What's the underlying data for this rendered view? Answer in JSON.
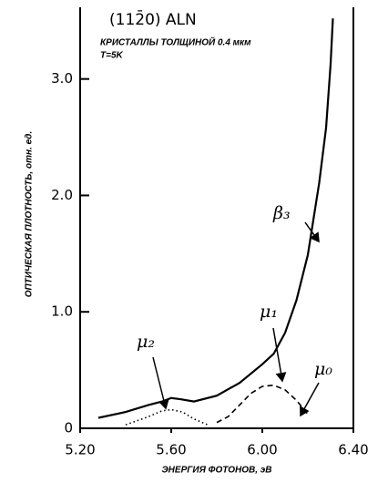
{
  "chart_data": {
    "type": "line",
    "title": "(112̄0) ALN",
    "subtitle": [
      "КРИСТАЛЛЫ ТОЛЩИНОЙ 0.4 мкм",
      "T=5K"
    ],
    "xlabel": "ЭНЕРГИЯ ФОТОНОВ, эВ",
    "ylabel": "ОПТИЧЕСКАЯ ПЛОТНОСТЬ, отн. ед.",
    "xlim": [
      5.2,
      6.4
    ],
    "ylim": [
      0,
      3.6
    ],
    "xticks": [
      {
        "value": 5.2,
        "label": "5.20"
      },
      {
        "value": 5.6,
        "label": "5.60"
      },
      {
        "value": 6,
        "label": "6.00"
      },
      {
        "value": 6.4,
        "label": "6.40"
      }
    ],
    "yticks": [
      0,
      {
        "value": 1,
        "label": "1.0"
      },
      {
        "value": 2,
        "label": "2.0"
      },
      {
        "value": 3,
        "label": "3.0"
      }
    ],
    "series": [
      {
        "name": "β₃",
        "color": "#000000",
        "style": "solid",
        "x": [
          5.28,
          5.4,
          5.5,
          5.56,
          5.6,
          5.64,
          5.7,
          5.8,
          5.9,
          6,
          6.05,
          6.1,
          6.15,
          6.2,
          6.25,
          6.28,
          6.3,
          6.31
        ],
        "values": [
          0.09,
          0.14,
          0.2,
          0.23,
          0.26,
          0.25,
          0.23,
          0.28,
          0.39,
          0.55,
          0.64,
          0.82,
          1.1,
          1.49,
          2.11,
          2.58,
          3.13,
          3.52
        ]
      },
      {
        "name": "μ₁",
        "color": "#000000",
        "style": "dashed",
        "x": [
          5.8,
          5.85,
          5.9,
          5.95,
          6,
          6.05,
          6.1,
          6.15,
          6.2
        ],
        "values": [
          0.05,
          0.1,
          0.2,
          0.3,
          0.36,
          0.37,
          0.33,
          0.24,
          0.12
        ]
      },
      {
        "name": "μ₂",
        "color": "#000000",
        "style": "dotted",
        "x": [
          5.4,
          5.5,
          5.56,
          5.6,
          5.65,
          5.7,
          5.76
        ],
        "values": [
          0.03,
          0.1,
          0.15,
          0.16,
          0.14,
          0.08,
          0.03
        ]
      }
    ],
    "annotations": [
      "μ₀"
    ]
  }
}
